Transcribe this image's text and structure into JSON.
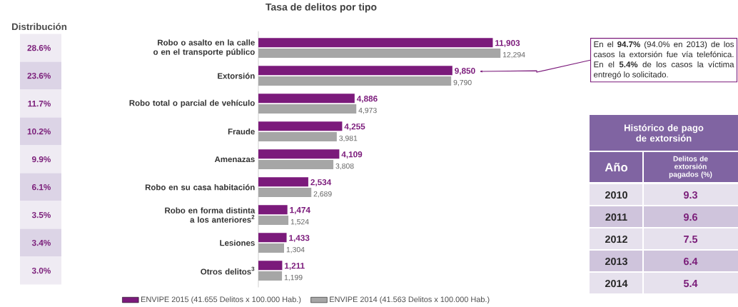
{
  "chart_data": [
    {
      "type": "other",
      "title": "Distribución",
      "annotations": [
        "28.6%",
        "23.6%",
        "11.7%",
        "10.2%",
        "9.9%",
        "6.1%",
        "3.5%",
        "3.4%",
        "3.0%"
      ]
    },
    {
      "type": "bar",
      "orientation": "horizontal",
      "title": "Tasa de delitos por tipo",
      "categories": [
        "Robo o asalto en la calle o en el transporte público",
        "Extorsión",
        "Robo total o parcial de vehículo",
        "Fraude",
        "Amenazas",
        "Robo en su casa habitación",
        "Robo en forma distinta a los anteriores$^{2}$",
        "Lesiones",
        "Otros delitos$^{3}$"
      ],
      "series": [
        {
          "name": "ENVIPE 2015 (41.655 Delitos x 100.000 Hab.)",
          "color": "#7b1a7b",
          "values": [
            11903,
            9850,
            4886,
            4255,
            4109,
            2534,
            1474,
            1433,
            1211
          ],
          "value_labels": [
            "11,903",
            "9,850",
            "4,886",
            "4,255",
            "4,109",
            "2,534",
            "1,474",
            "1,433",
            "1,211"
          ]
        },
        {
          "name": "ENVIPE 2014 (41.563 Delitos x 100.000 Hab.)",
          "color": "#a6a6a6",
          "values": [
            12294,
            9790,
            4973,
            3981,
            3808,
            2689,
            1524,
            1304,
            1199
          ],
          "value_labels": [
            "12,294",
            "9,790",
            "4,973",
            "3,981",
            "3,808",
            "2,689",
            "1,524",
            "1,304",
            "1,199"
          ]
        }
      ],
      "tick_labels": "y",
      "legend": "bottom",
      "annotations": [
        "En el **94.7%** (94.0% en 2013) de los casos la extorsión fue vía telefónica. En el **5.4%** de los casos la víctima entregó lo solicitado."
      ]
    },
    {
      "type": "heatmap",
      "title": "Histórico de pago de extorsión",
      "ylabel": "Año",
      "categories": [
        "Delitos de extorsión pagados (%)"
      ],
      "y_categories": [
        "2010",
        "2011",
        "2012",
        "2013",
        "2014"
      ],
      "cells": [
        [
          9.3
        ],
        [
          9.6
        ],
        [
          7.5
        ],
        [
          6.4
        ],
        [
          5.4
        ]
      ],
      "data_labels": true
    }
  ]
}
